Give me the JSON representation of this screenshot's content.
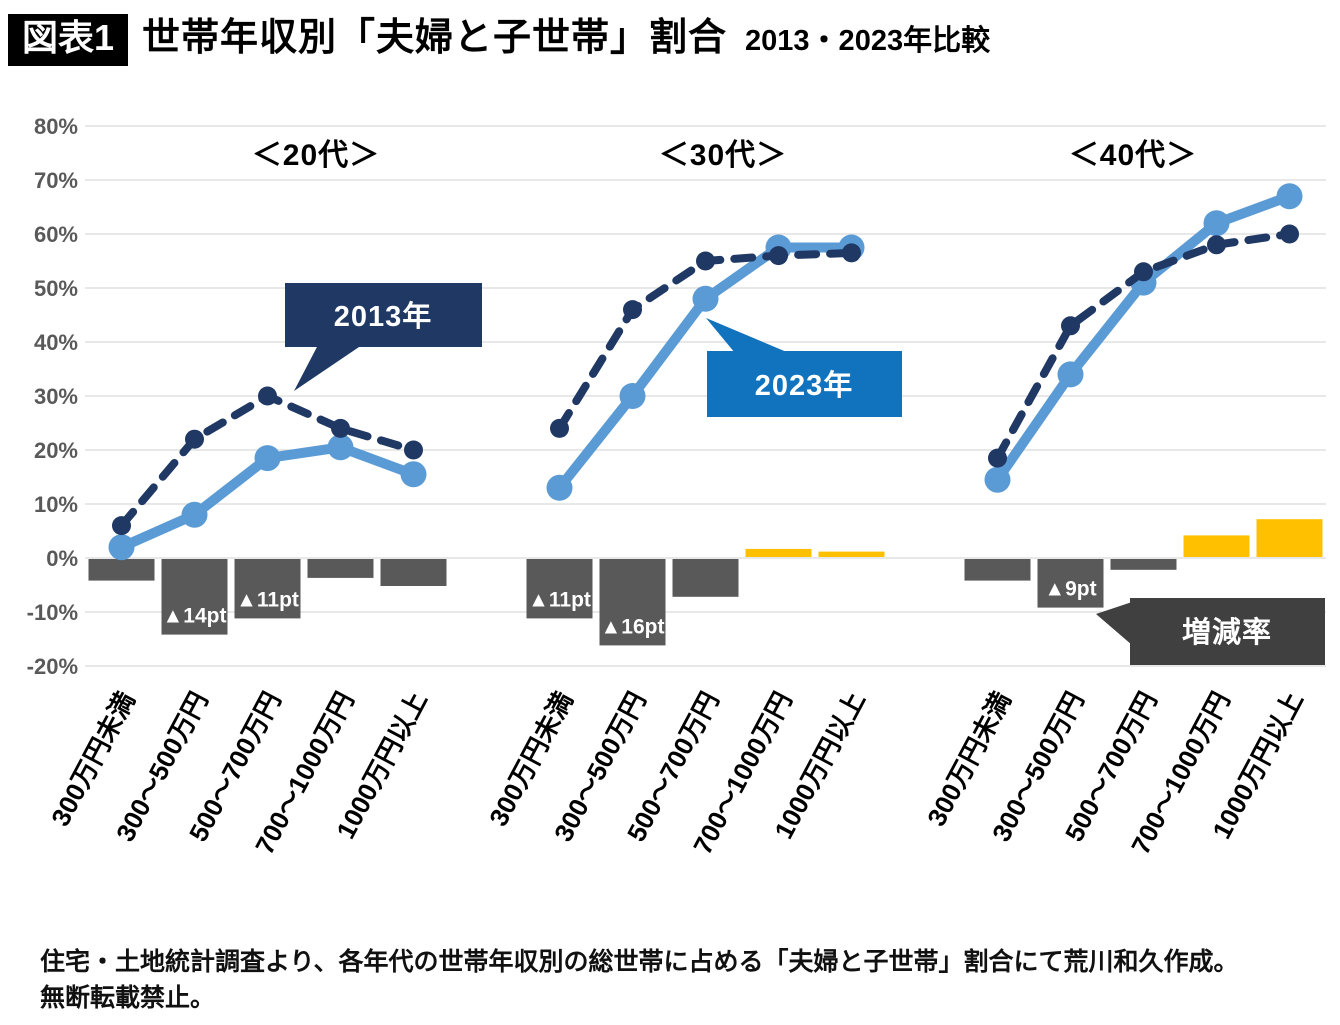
{
  "header": {
    "figure_label": "図表1",
    "title_main": "世帯年収別「夫婦と子世帯」割合",
    "title_sub": "2013・2023年比較"
  },
  "footer": {
    "line1": "住宅・土地統計調査より、各年代の世帯年収別の総世帯に占める「夫婦と子世帯」割合にて荒川和久作成。",
    "line2": "無断転載禁止。"
  },
  "chart_data": {
    "type": "line+bar",
    "y_axis": {
      "min": -20,
      "max": 80,
      "step": 10,
      "tick_suffix": "%"
    },
    "categories": [
      "300万円未満",
      "300〜500万円",
      "500〜700万円",
      "700〜1000万円",
      "1000万円以上"
    ],
    "groups": [
      {
        "title": "＜20代＞",
        "values_2013": [
          6,
          22,
          30,
          24,
          20
        ],
        "values_2023": [
          2,
          8,
          18.5,
          20.5,
          15.5
        ],
        "diff_pt": [
          -4,
          -14,
          -11,
          -3.5,
          -5
        ],
        "diff_labels": [
          "",
          "▲14pt",
          "▲11pt",
          "",
          ""
        ]
      },
      {
        "title": "＜30代＞",
        "values_2013": [
          24,
          46,
          55,
          56,
          56.5
        ],
        "values_2023": [
          13,
          30,
          48,
          57.5,
          57.5
        ],
        "diff_pt": [
          -11,
          -16,
          -7,
          1.5,
          1
        ],
        "diff_labels": [
          "▲11pt",
          "▲16pt",
          "",
          "",
          ""
        ]
      },
      {
        "title": "＜40代＞",
        "values_2013": [
          18.5,
          43,
          53,
          58,
          60
        ],
        "values_2023": [
          14.5,
          34,
          51,
          62,
          67
        ],
        "diff_pt": [
          -4,
          -9,
          -2,
          4,
          7
        ],
        "diff_labels": [
          "",
          "▲9pt",
          "",
          "",
          ""
        ]
      }
    ],
    "series": [
      {
        "name": "2013年",
        "line_style": "dashed",
        "color": "#1f3864"
      },
      {
        "name": "2023年",
        "line_style": "solid",
        "color": "#5b9bd5"
      }
    ],
    "diff_bar_legend": "増減率",
    "colors": {
      "series_2013": "#1f3864",
      "series_2023": "#5b9bd5",
      "callout_2023_box": "#1172bd",
      "bar_negative": "#595959",
      "bar_positive": "#ffc000",
      "diff_legend_box": "#404040",
      "gridline": "#d9d9d9"
    },
    "legend_position": "callouts-on-chart",
    "grid": true
  }
}
